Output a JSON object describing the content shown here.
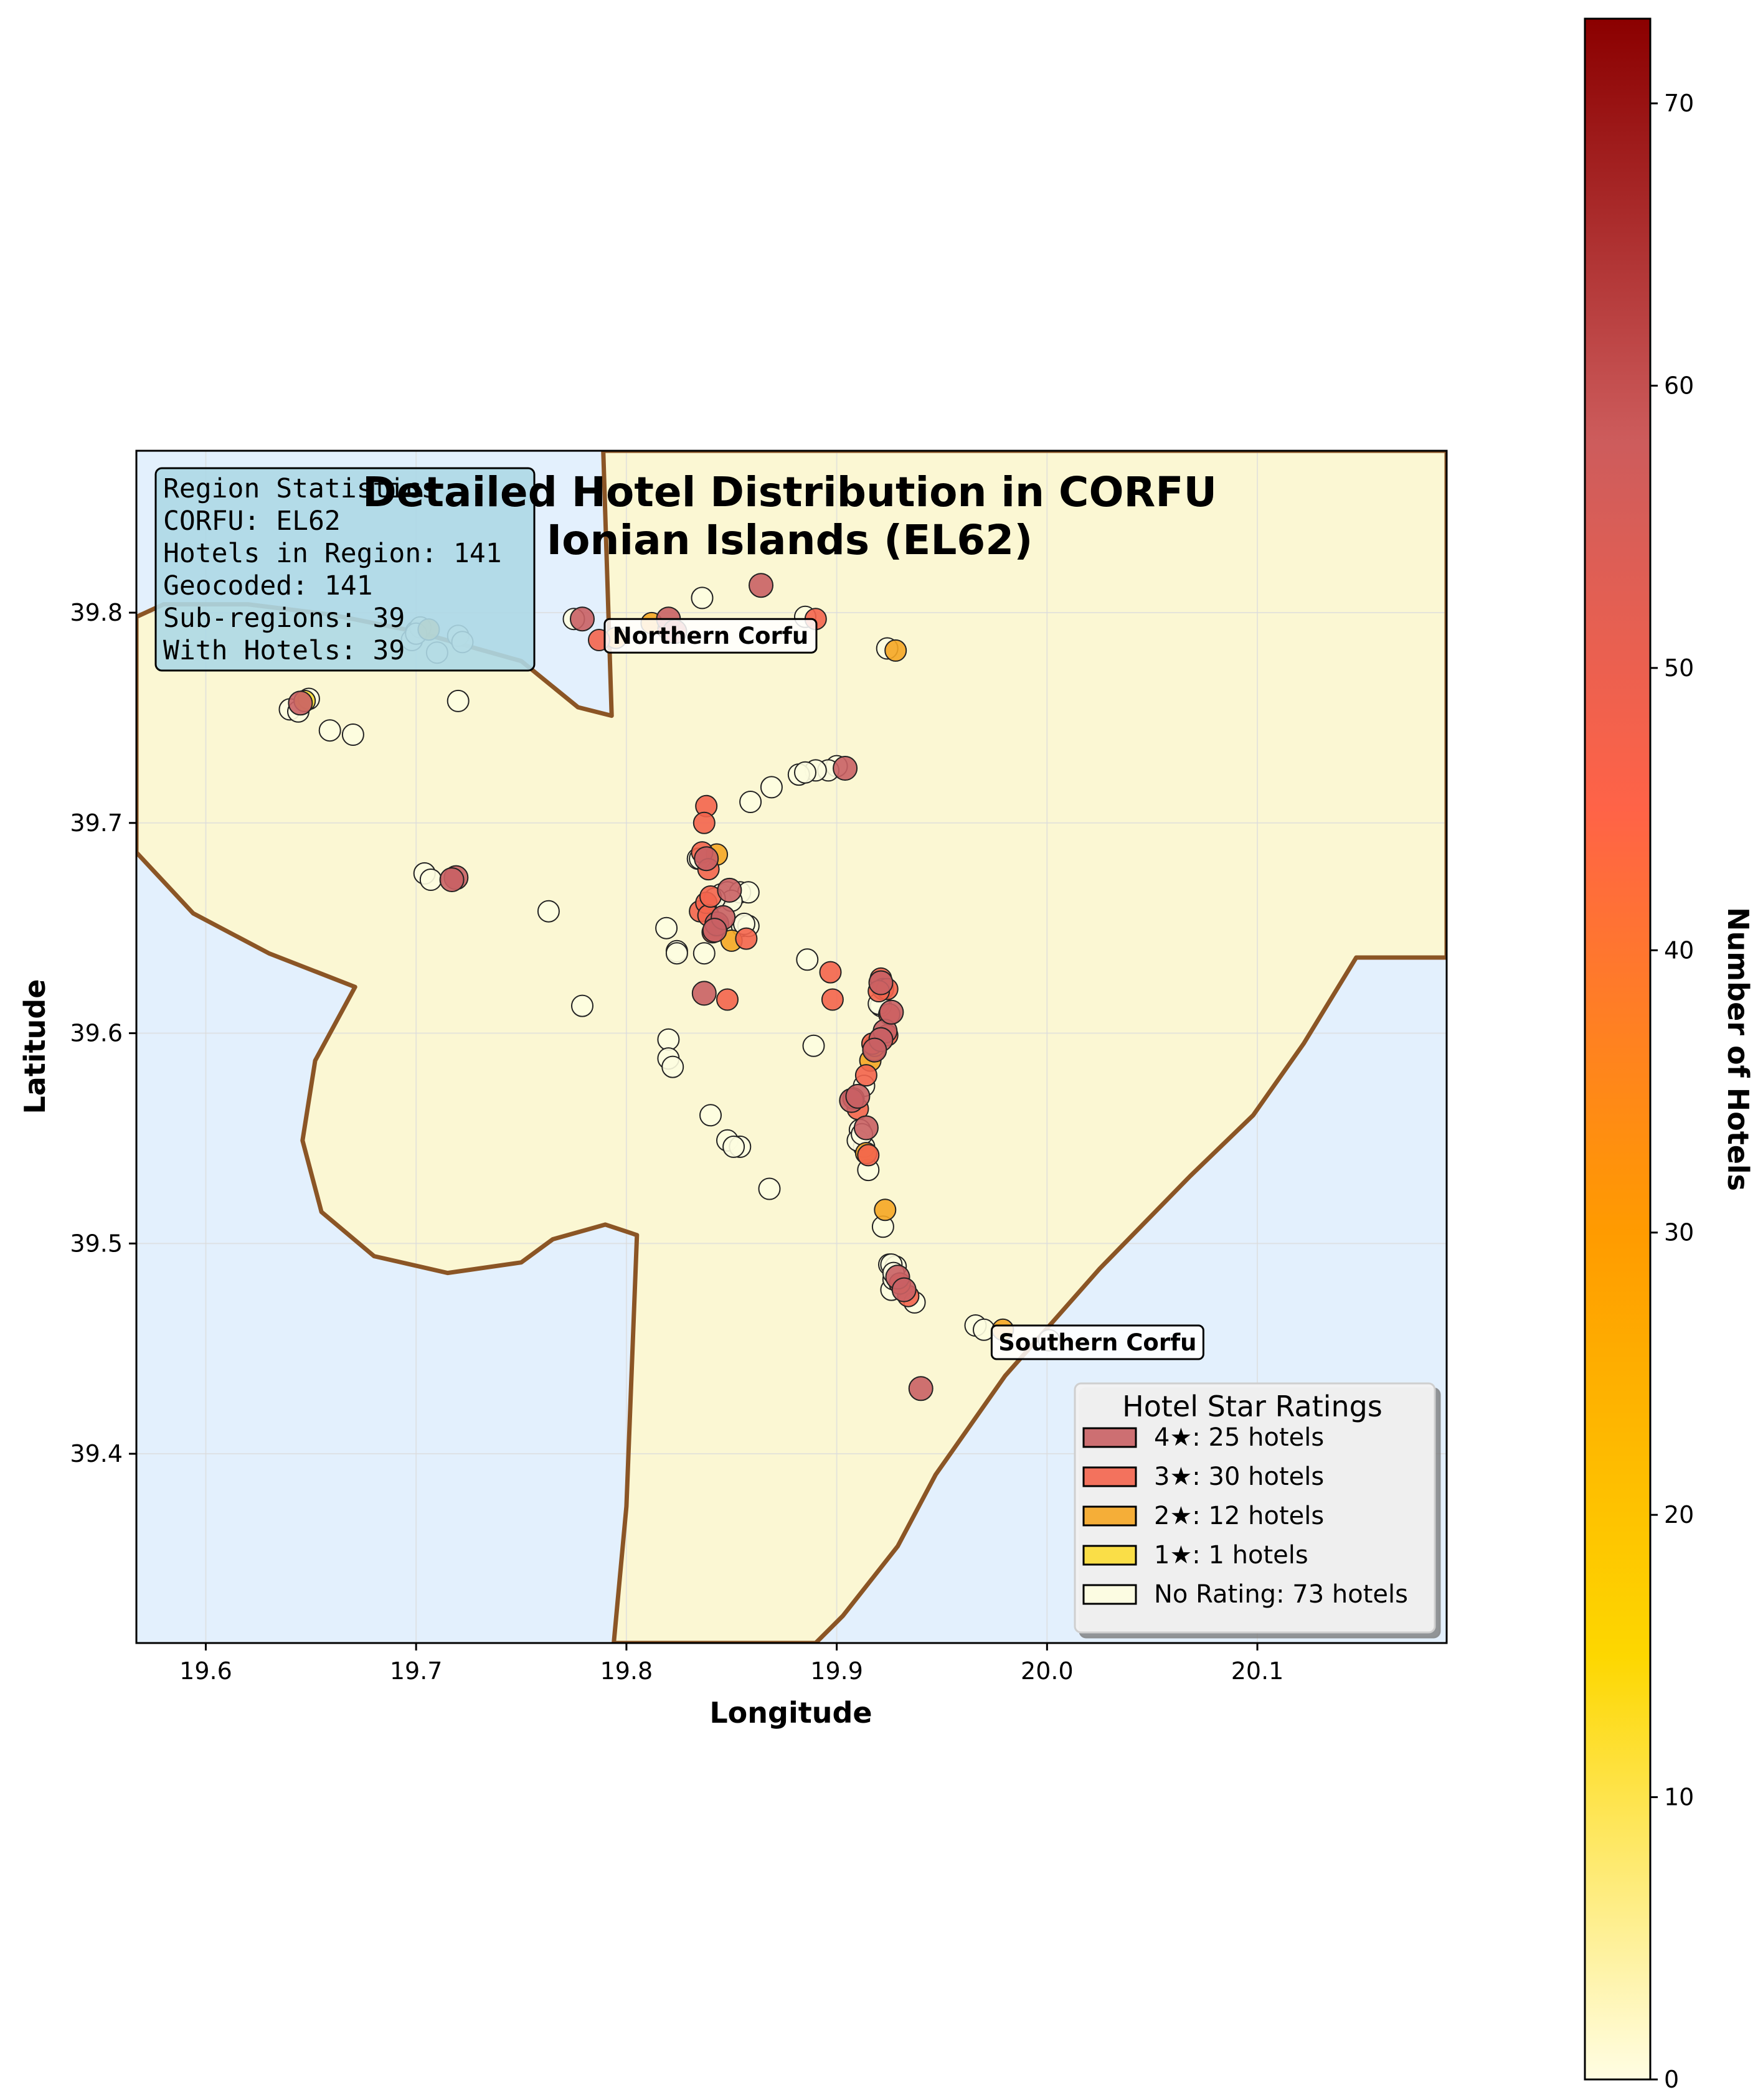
{
  "map": {
    "title_line1": "Detailed Hotel Distribution in CORFU",
    "title_line2": "Ionian Islands (EL62)",
    "xlabel": "Longitude",
    "ylabel": "Latitude",
    "xlim": [
      19.567,
      20.19
    ],
    "ylim": [
      39.31,
      39.877
    ],
    "xticks": [
      19.6,
      19.7,
      19.8,
      19.9,
      20.0,
      20.1
    ],
    "xtick_labels": [
      "19.6",
      "19.7",
      "19.8",
      "19.9",
      "20.0",
      "20.1"
    ],
    "yticks": [
      39.4,
      39.5,
      39.6,
      39.7,
      39.8
    ],
    "ytick_labels": [
      "39.4",
      "39.5",
      "39.6",
      "39.7",
      "39.8"
    ],
    "colors": {
      "sea": "#e3f0fd",
      "land": "#fbf7d3",
      "border": "#8b5525",
      "grid": "#dcdcdc"
    },
    "stats_box": {
      "lines": [
        "Region Statistics",
        "CORFU: EL62",
        "Hotels in Region: 141",
        "Geocoded: 141",
        "Sub-regions: 39",
        "With Hotels: 39"
      ],
      "background": "#add8e6"
    },
    "area_labels": [
      {
        "text": "Northern Corfu",
        "lon": 19.84,
        "lat": 39.789
      },
      {
        "text": "Southern Corfu",
        "lon": 20.024,
        "lat": 39.453
      }
    ],
    "legend": {
      "title": "Hotel Star Ratings",
      "items": [
        {
          "label": "4★: 25 hotels",
          "color": "#c96064"
        },
        {
          "label": "3★: 30 hotels",
          "color": "#f3644c"
        },
        {
          "label": "2★: 12 hotels",
          "color": "#f5a623"
        },
        {
          "label": "1★: 1 hotels",
          "color": "#fbdc34"
        },
        {
          "label": "No Rating: 73 hotels",
          "color": "#fdfde0"
        }
      ]
    },
    "colorbar": {
      "label": "Number of Hotels",
      "range": [
        0,
        73
      ],
      "ticks": [
        0,
        10,
        20,
        30,
        40,
        50,
        60,
        70
      ],
      "tick_labels": [
        "0",
        "10",
        "20",
        "30",
        "40",
        "50",
        "60",
        "70"
      ],
      "stops": [
        {
          "v": 0,
          "color": "#fffde3"
        },
        {
          "v": 15,
          "color": "#fdd700"
        },
        {
          "v": 30,
          "color": "#ff9b00"
        },
        {
          "v": 45,
          "color": "#ff6347"
        },
        {
          "v": 58,
          "color": "#cd5c5c"
        },
        {
          "v": 73,
          "color": "#8b0000"
        }
      ]
    }
  },
  "chart_data": {
    "type": "scatter",
    "title": "Detailed Hotel Distribution in CORFU\nIonian Islands (EL62)",
    "xlabel": "Longitude",
    "ylabel": "Latitude",
    "xlim": [
      19.567,
      20.19
    ],
    "ylim": [
      39.31,
      39.877
    ],
    "grid": true,
    "legend_placement": "lower-right",
    "coastline": [
      [
        19.567,
        39.798
      ],
      [
        19.58,
        39.804
      ],
      [
        19.62,
        39.804
      ],
      [
        19.66,
        39.799
      ],
      [
        19.7,
        39.791
      ],
      [
        19.75,
        39.777
      ],
      [
        19.777,
        39.755
      ],
      [
        19.793,
        39.751
      ],
      [
        19.789,
        39.877
      ],
      [
        20.19,
        39.877
      ],
      [
        20.19,
        39.636
      ],
      [
        20.147,
        39.636
      ],
      [
        20.122,
        39.595
      ],
      [
        20.098,
        39.561
      ],
      [
        20.068,
        39.532
      ],
      [
        20.025,
        39.488
      ],
      [
        19.98,
        39.437
      ],
      [
        19.947,
        39.39
      ],
      [
        19.929,
        39.356
      ],
      [
        19.903,
        39.323
      ],
      [
        19.89,
        39.31
      ],
      [
        19.794,
        39.31
      ],
      [
        19.8,
        39.375
      ],
      [
        19.805,
        39.504
      ],
      [
        19.79,
        39.509
      ],
      [
        19.765,
        39.502
      ],
      [
        19.75,
        39.491
      ],
      [
        19.715,
        39.486
      ],
      [
        19.68,
        39.494
      ],
      [
        19.655,
        39.515
      ],
      [
        19.646,
        39.549
      ],
      [
        19.652,
        39.587
      ],
      [
        19.671,
        39.622
      ],
      [
        19.63,
        39.638
      ],
      [
        19.594,
        39.657
      ],
      [
        19.567,
        39.686
      ]
    ],
    "series": [
      {
        "name": "4★",
        "color": "#c96064",
        "points": [
          [
            19.645,
            39.757
          ],
          [
            19.779,
            39.797
          ],
          [
            19.82,
            39.797
          ],
          [
            19.864,
            39.813
          ],
          [
            19.904,
            39.726
          ],
          [
            19.719,
            39.674
          ],
          [
            19.717,
            39.673
          ],
          [
            19.843,
            39.652
          ],
          [
            19.846,
            39.655
          ],
          [
            19.849,
            39.668
          ],
          [
            19.837,
            39.619
          ],
          [
            19.921,
            39.624
          ],
          [
            19.923,
            39.601
          ],
          [
            19.921,
            39.597
          ],
          [
            19.907,
            39.568
          ],
          [
            19.914,
            39.555
          ],
          [
            19.929,
            39.484
          ],
          [
            19.94,
            39.431
          ],
          [
            19.838,
            39.683
          ],
          [
            19.842,
            39.649
          ],
          [
            19.926,
            39.61
          ],
          [
            19.91,
            39.57
          ],
          [
            19.932,
            39.478
          ],
          [
            19.918,
            39.592
          ],
          [
            19.823,
            39.791
          ]
        ]
      },
      {
        "name": "3★",
        "color": "#f3644c",
        "points": [
          [
            19.787,
            39.787
          ],
          [
            19.82,
            39.792
          ],
          [
            19.89,
            39.797
          ],
          [
            19.838,
            39.708
          ],
          [
            19.837,
            39.7
          ],
          [
            19.836,
            39.686
          ],
          [
            19.839,
            39.678
          ],
          [
            19.835,
            39.658
          ],
          [
            19.838,
            39.662
          ],
          [
            19.839,
            39.656
          ],
          [
            19.843,
            39.651
          ],
          [
            19.857,
            39.645
          ],
          [
            19.848,
            39.616
          ],
          [
            19.897,
            39.629
          ],
          [
            19.898,
            39.616
          ],
          [
            19.921,
            39.626
          ],
          [
            19.922,
            39.621
          ],
          [
            19.924,
            39.621
          ],
          [
            19.925,
            39.609
          ],
          [
            19.917,
            39.595
          ],
          [
            19.914,
            39.58
          ],
          [
            19.91,
            39.564
          ],
          [
            19.934,
            39.475
          ],
          [
            19.908,
            39.569
          ],
          [
            19.84,
            39.665
          ],
          [
            19.92,
            39.62
          ],
          [
            19.924,
            39.599
          ],
          [
            19.915,
            39.542
          ],
          [
            19.93,
            39.481
          ],
          [
            19.841,
            39.648
          ]
        ]
      },
      {
        "name": "2★",
        "color": "#f5a623",
        "points": [
          [
            19.706,
            39.792
          ],
          [
            19.795,
            39.788
          ],
          [
            19.812,
            39.795
          ],
          [
            19.928,
            39.782
          ],
          [
            19.843,
            39.685
          ],
          [
            19.85,
            39.644
          ],
          [
            19.916,
            39.587
          ],
          [
            19.918,
            39.592
          ],
          [
            19.918,
            39.594
          ],
          [
            19.923,
            39.516
          ],
          [
            19.979,
            39.459
          ],
          [
            19.914,
            39.543
          ]
        ]
      },
      {
        "name": "1★",
        "color": "#fbdc34",
        "points": [
          [
            19.647,
            39.758
          ]
        ]
      },
      {
        "name": "No Rating",
        "color": "#fdfde0",
        "points": [
          [
            19.64,
            39.754
          ],
          [
            19.644,
            39.753
          ],
          [
            19.649,
            39.759
          ],
          [
            19.659,
            39.744
          ],
          [
            19.67,
            39.742
          ],
          [
            19.7,
            39.791
          ],
          [
            19.698,
            39.787
          ],
          [
            19.702,
            39.793
          ],
          [
            19.71,
            39.781
          ],
          [
            19.72,
            39.789
          ],
          [
            19.722,
            39.786
          ],
          [
            19.72,
            39.758
          ],
          [
            19.775,
            39.797
          ],
          [
            19.836,
            39.807
          ],
          [
            19.885,
            39.798
          ],
          [
            19.924,
            39.783
          ],
          [
            19.9,
            39.727
          ],
          [
            19.896,
            39.725
          ],
          [
            19.89,
            39.725
          ],
          [
            19.882,
            39.723
          ],
          [
            19.885,
            39.724
          ],
          [
            19.869,
            39.717
          ],
          [
            19.859,
            39.71
          ],
          [
            19.704,
            39.676
          ],
          [
            19.707,
            39.673
          ],
          [
            19.763,
            39.658
          ],
          [
            19.779,
            39.613
          ],
          [
            19.819,
            39.65
          ],
          [
            19.834,
            39.683
          ],
          [
            19.845,
            39.666
          ],
          [
            19.848,
            39.667
          ],
          [
            19.854,
            39.667
          ],
          [
            19.858,
            39.667
          ],
          [
            19.855,
            39.651
          ],
          [
            19.858,
            39.651
          ],
          [
            19.824,
            39.639
          ],
          [
            19.85,
            39.663
          ],
          [
            19.886,
            39.635
          ],
          [
            19.889,
            39.594
          ],
          [
            19.82,
            39.597
          ],
          [
            19.82,
            39.588
          ],
          [
            19.822,
            39.584
          ],
          [
            19.84,
            39.561
          ],
          [
            19.848,
            39.549
          ],
          [
            19.854,
            39.546
          ],
          [
            19.851,
            39.546
          ],
          [
            19.868,
            39.526
          ],
          [
            19.921,
            39.613
          ],
          [
            19.911,
            39.554
          ],
          [
            19.913,
            39.546
          ],
          [
            19.91,
            39.549
          ],
          [
            19.915,
            39.535
          ],
          [
            19.922,
            39.508
          ],
          [
            19.925,
            39.49
          ],
          [
            19.928,
            39.489
          ],
          [
            19.926,
            39.478
          ],
          [
            19.927,
            39.483
          ],
          [
            19.937,
            39.472
          ],
          [
            19.966,
            39.461
          ],
          [
            19.97,
            39.459
          ],
          [
            20.001,
            39.454
          ],
          [
            19.842,
            39.664
          ],
          [
            19.913,
            39.575
          ],
          [
            19.926,
            39.49
          ],
          [
            19.837,
            39.638
          ],
          [
            19.92,
            39.614
          ],
          [
            19.917,
            39.595
          ],
          [
            19.912,
            39.552
          ],
          [
            19.927,
            39.486
          ],
          [
            19.856,
            39.652
          ],
          [
            19.835,
            39.683
          ],
          [
            19.7,
            39.79
          ],
          [
            19.824,
            39.638
          ]
        ]
      }
    ]
  }
}
